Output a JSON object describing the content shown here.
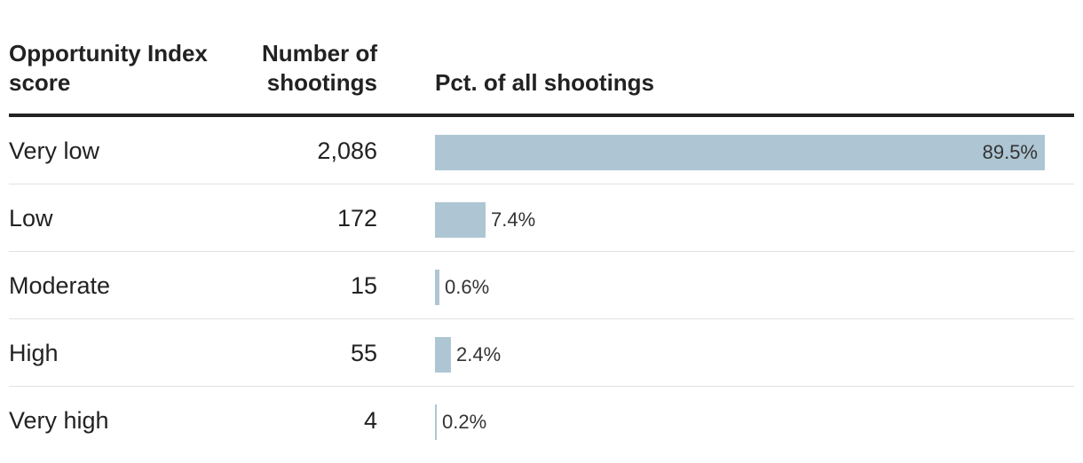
{
  "headers": {
    "score": "Opportunity Index score",
    "count": "Number of shootings",
    "pct": "Pct. of all shootings"
  },
  "colors": {
    "bar": "#aec6d3",
    "rule": "#222222"
  },
  "chart_data": {
    "type": "bar",
    "orientation": "horizontal",
    "title": "",
    "categories": [
      "Very low",
      "Low",
      "Moderate",
      "High",
      "Very high"
    ],
    "counts": [
      "2,086",
      "172",
      "15",
      "55",
      "4"
    ],
    "values": [
      89.5,
      7.4,
      0.6,
      2.4,
      0.2
    ],
    "value_labels": [
      "89.5%",
      "7.4%",
      "0.6%",
      "2.4%",
      "0.2%"
    ],
    "xlabel": "Pct. of all shootings",
    "ylabel": "Opportunity Index score",
    "xlim": [
      0,
      100
    ]
  }
}
